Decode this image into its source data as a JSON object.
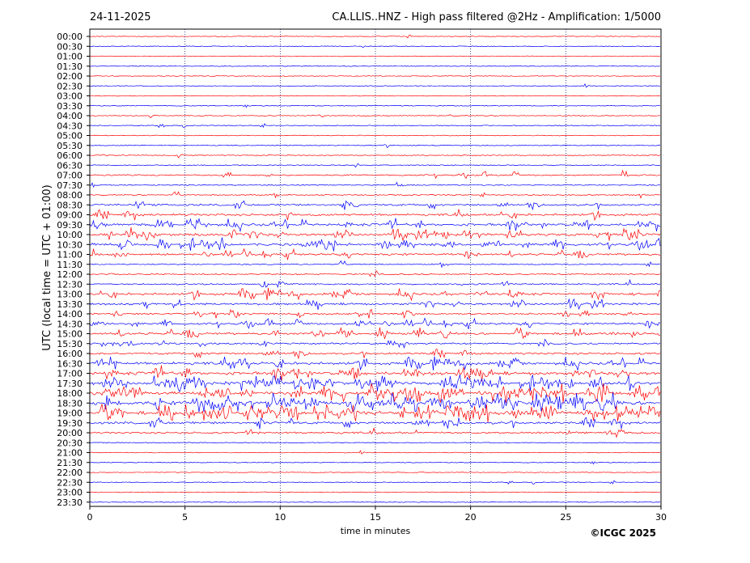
{
  "chart_data": {
    "type": "line",
    "date": "24-11-2025",
    "title": "CA.LLIS..HNZ - High pass filtered @2Hz - Amplification: 1/5000",
    "xlabel": "time in minutes",
    "ylabel": "UTC (local time = UTC + 01:00)",
    "copyright": "©ICGC 2025",
    "xlim": [
      0,
      30
    ],
    "x_ticks": [
      "0",
      "5",
      "10",
      "15",
      "20",
      "25",
      "30"
    ],
    "rows": [
      "00:00",
      "00:30",
      "01:00",
      "01:30",
      "02:00",
      "02:30",
      "03:00",
      "03:30",
      "04:00",
      "04:30",
      "05:00",
      "05:30",
      "06:00",
      "06:30",
      "07:00",
      "07:30",
      "08:00",
      "08:30",
      "09:00",
      "09:30",
      "10:00",
      "10:30",
      "11:00",
      "11:30",
      "12:00",
      "12:30",
      "13:00",
      "13:30",
      "14:00",
      "14:30",
      "15:00",
      "15:30",
      "16:00",
      "16:30",
      "17:00",
      "17:30",
      "18:00",
      "18:30",
      "19:00",
      "19:30",
      "20:00",
      "20:30",
      "21:00",
      "21:30",
      "22:00",
      "22:30",
      "23:00",
      "23:30"
    ],
    "series_colors": [
      "#ff0000",
      "#0000ff"
    ],
    "row_activity": [
      0.02,
      0.01,
      0.01,
      0.01,
      0.01,
      0.01,
      0.01,
      0.01,
      0.05,
      0.06,
      0.04,
      0.01,
      0.07,
      0.05,
      0.22,
      0.13,
      0.12,
      0.35,
      0.45,
      0.55,
      0.55,
      0.55,
      0.4,
      0.15,
      0.2,
      0.25,
      0.5,
      0.45,
      0.3,
      0.4,
      0.45,
      0.3,
      0.4,
      0.6,
      0.75,
      0.8,
      0.95,
      0.95,
      0.9,
      0.5,
      0.35,
      0.03,
      0.01,
      0.01,
      0.01,
      0.01,
      0.01,
      0.01
    ]
  }
}
